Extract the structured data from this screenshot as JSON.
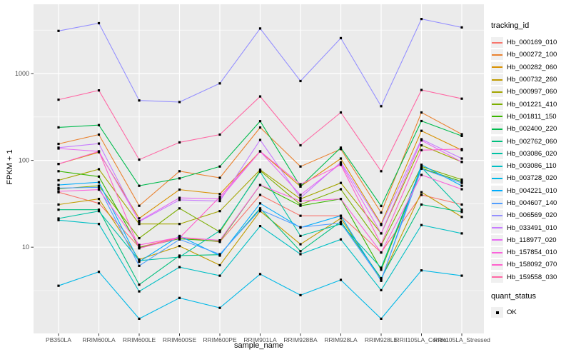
{
  "chart_data": {
    "type": "line",
    "title": "",
    "xlabel": "sample_name",
    "ylabel": "FPKM + 1",
    "y_scale": "log10",
    "ylim": [
      1,
      6300
    ],
    "grid": true,
    "legend_position": "right",
    "legend_titles": {
      "tracking": "tracking_id",
      "quant": "quant_status"
    },
    "quant_status_label": "OK",
    "y_ticks": [
      {
        "label": "10",
        "value": 10
      },
      {
        "label": "100",
        "value": 100
      },
      {
        "label": "1000",
        "value": 1000
      }
    ],
    "y_minor": [
      3.162,
      31.62,
      316.2,
      3162
    ],
    "x_categories": [
      "PB350LA",
      "RRIM600LA",
      "RRIM600LE",
      "RRIM600SE",
      "RRIM600PE",
      "RRIM901LA",
      "RRIM928BA",
      "RRIM928LA",
      "RRIM928LE",
      "RRII105LA_Control",
      "RRII105LA_Stressed"
    ],
    "series": [
      {
        "name": "Hb_000169_010",
        "color": "#F8766D",
        "values": [
          43,
          32,
          10,
          13,
          11.5,
          40,
          23,
          23,
          8.7,
          40,
          31
        ]
      },
      {
        "name": "Hb_000272_100",
        "color": "#EA8331",
        "values": [
          155,
          198,
          30,
          75,
          63,
          239,
          85,
          135,
          25,
          356,
          200
        ]
      },
      {
        "name": "Hb_000282_060",
        "color": "#D89000",
        "values": [
          91,
          124,
          21.5,
          46,
          41,
          127,
          50,
          105,
          18.5,
          219,
          131
        ]
      },
      {
        "name": "Hb_000732_260",
        "color": "#C09B00",
        "values": [
          31,
          36,
          7.2,
          10.3,
          6.2,
          26,
          10.8,
          21.5,
          4.3,
          43,
          22.3
        ]
      },
      {
        "name": "Hb_000997_060",
        "color": "#A3A500",
        "values": [
          59,
          79,
          18.5,
          18.5,
          26,
          78,
          36,
          55,
          14.4,
          149,
          96
        ]
      },
      {
        "name": "Hb_001221_410",
        "color": "#7CAE00",
        "values": [
          47,
          51,
          12.7,
          28,
          15,
          76,
          31,
          46.5,
          10.5,
          85,
          60
        ]
      },
      {
        "name": "Hb_001811_150",
        "color": "#39B600",
        "values": [
          75,
          65,
          9.9,
          12.5,
          11.7,
          52,
          30,
          36,
          5.5,
          81,
          57
        ]
      },
      {
        "name": "Hb_002400_220",
        "color": "#00BB4E",
        "values": [
          240,
          255,
          51,
          62,
          85,
          283,
          50,
          140,
          29.8,
          284,
          191
        ]
      },
      {
        "name": "Hb_002762_060",
        "color": "#00BF7D",
        "values": [
          27,
          27,
          3.7,
          8,
          8.2,
          28,
          9,
          19.7,
          4.4,
          31,
          25.5
        ]
      },
      {
        "name": "Hb_003086_020",
        "color": "#00C1A3",
        "values": [
          21.4,
          26,
          7.0,
          7.7,
          15.5,
          74,
          13.5,
          18.5,
          5.8,
          83,
          27
        ]
      },
      {
        "name": "Hb_003086_110",
        "color": "#00BFC4",
        "values": [
          20.5,
          18.5,
          3.1,
          5.9,
          4.7,
          17.5,
          8.3,
          12.3,
          3.2,
          18,
          14.4
        ]
      },
      {
        "name": "Hb_003728_020",
        "color": "#00B8E7",
        "values": [
          3.6,
          5.2,
          1.5,
          2.6,
          2.0,
          4.9,
          2.8,
          4.2,
          1.5,
          5.4,
          4.7
        ]
      },
      {
        "name": "Hb_004221_010",
        "color": "#00ACFC",
        "values": [
          52,
          56,
          6.8,
          13.5,
          8.0,
          32,
          16.8,
          23,
          4.1,
          89,
          51
        ]
      },
      {
        "name": "Hb_004607_140",
        "color": "#529EFF",
        "values": [
          48,
          49,
          6.1,
          12.3,
          8.3,
          27,
          17,
          19,
          4.2,
          80,
          55
        ]
      },
      {
        "name": "Hb_006569_020",
        "color": "#9590FF",
        "values": [
          3100,
          3800,
          490,
          470,
          770,
          3300,
          820,
          2560,
          420,
          4250,
          3400
        ]
      },
      {
        "name": "Hb_033491_010",
        "color": "#C77CFF",
        "values": [
          140,
          156,
          19.7,
          35,
          34,
          172,
          37,
          95,
          18,
          175,
          105
        ]
      },
      {
        "name": "Hb_118977_020",
        "color": "#E76BF3",
        "values": [
          137,
          127,
          20,
          37,
          36,
          127,
          40,
          92,
          14.4,
          170,
          96
        ]
      },
      {
        "name": "Hb_157854_010",
        "color": "#FA62DB",
        "values": [
          44,
          46,
          10.6,
          13,
          12,
          52,
          34,
          36,
          8.7,
          68,
          46.5
        ]
      },
      {
        "name": "Hb_158092_070",
        "color": "#FF61CC",
        "values": [
          91,
          127,
          9.7,
          12.8,
          38,
          127,
          53,
          89,
          10.8,
          131,
          135
        ]
      },
      {
        "name": "Hb_159558_030",
        "color": "#FF67A4",
        "values": [
          500,
          640,
          102,
          161,
          198,
          545,
          149,
          356,
          75,
          647,
          513
        ]
      }
    ],
    "style": {
      "panel_bg": "#EBEBEB",
      "grid_color": "#FFFFFF",
      "point_color": "#000000",
      "tick_color": "#333333",
      "tick_label_color": "#4D4D4D"
    }
  }
}
